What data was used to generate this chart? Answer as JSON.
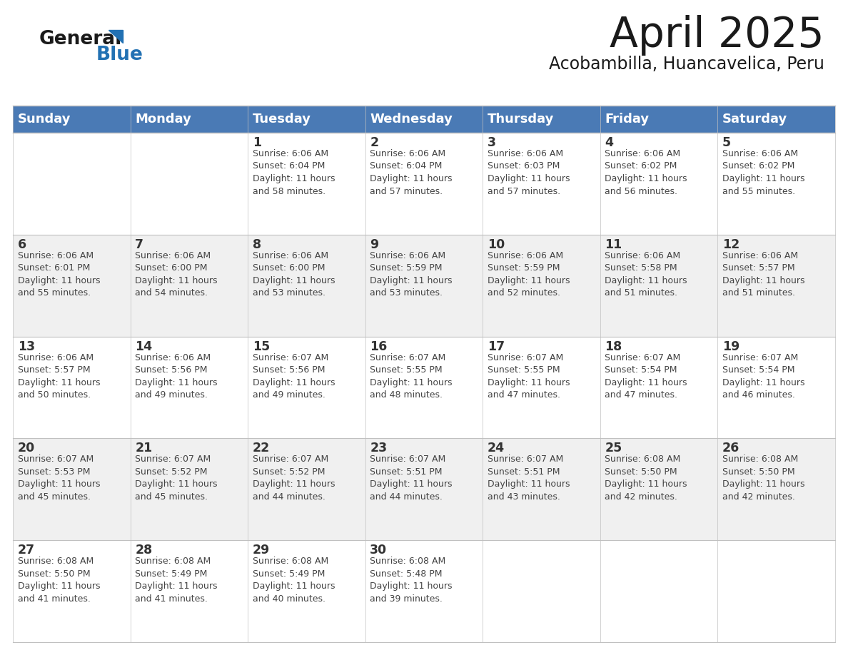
{
  "title": "April 2025",
  "subtitle": "Acobambilla, Huancavelica, Peru",
  "header_color": "#4a7ab5",
  "header_text_color": "#ffffff",
  "cell_bg_even": "#f0f0f0",
  "cell_bg_odd": "#ffffff",
  "grid_line_color": "#c0c0c0",
  "text_color": "#333333",
  "days_of_week": [
    "Sunday",
    "Monday",
    "Tuesday",
    "Wednesday",
    "Thursday",
    "Friday",
    "Saturday"
  ],
  "calendar_data": [
    [
      {
        "day": "",
        "info": ""
      },
      {
        "day": "",
        "info": ""
      },
      {
        "day": "1",
        "info": "Sunrise: 6:06 AM\nSunset: 6:04 PM\nDaylight: 11 hours\nand 58 minutes."
      },
      {
        "day": "2",
        "info": "Sunrise: 6:06 AM\nSunset: 6:04 PM\nDaylight: 11 hours\nand 57 minutes."
      },
      {
        "day": "3",
        "info": "Sunrise: 6:06 AM\nSunset: 6:03 PM\nDaylight: 11 hours\nand 57 minutes."
      },
      {
        "day": "4",
        "info": "Sunrise: 6:06 AM\nSunset: 6:02 PM\nDaylight: 11 hours\nand 56 minutes."
      },
      {
        "day": "5",
        "info": "Sunrise: 6:06 AM\nSunset: 6:02 PM\nDaylight: 11 hours\nand 55 minutes."
      }
    ],
    [
      {
        "day": "6",
        "info": "Sunrise: 6:06 AM\nSunset: 6:01 PM\nDaylight: 11 hours\nand 55 minutes."
      },
      {
        "day": "7",
        "info": "Sunrise: 6:06 AM\nSunset: 6:00 PM\nDaylight: 11 hours\nand 54 minutes."
      },
      {
        "day": "8",
        "info": "Sunrise: 6:06 AM\nSunset: 6:00 PM\nDaylight: 11 hours\nand 53 minutes."
      },
      {
        "day": "9",
        "info": "Sunrise: 6:06 AM\nSunset: 5:59 PM\nDaylight: 11 hours\nand 53 minutes."
      },
      {
        "day": "10",
        "info": "Sunrise: 6:06 AM\nSunset: 5:59 PM\nDaylight: 11 hours\nand 52 minutes."
      },
      {
        "day": "11",
        "info": "Sunrise: 6:06 AM\nSunset: 5:58 PM\nDaylight: 11 hours\nand 51 minutes."
      },
      {
        "day": "12",
        "info": "Sunrise: 6:06 AM\nSunset: 5:57 PM\nDaylight: 11 hours\nand 51 minutes."
      }
    ],
    [
      {
        "day": "13",
        "info": "Sunrise: 6:06 AM\nSunset: 5:57 PM\nDaylight: 11 hours\nand 50 minutes."
      },
      {
        "day": "14",
        "info": "Sunrise: 6:06 AM\nSunset: 5:56 PM\nDaylight: 11 hours\nand 49 minutes."
      },
      {
        "day": "15",
        "info": "Sunrise: 6:07 AM\nSunset: 5:56 PM\nDaylight: 11 hours\nand 49 minutes."
      },
      {
        "day": "16",
        "info": "Sunrise: 6:07 AM\nSunset: 5:55 PM\nDaylight: 11 hours\nand 48 minutes."
      },
      {
        "day": "17",
        "info": "Sunrise: 6:07 AM\nSunset: 5:55 PM\nDaylight: 11 hours\nand 47 minutes."
      },
      {
        "day": "18",
        "info": "Sunrise: 6:07 AM\nSunset: 5:54 PM\nDaylight: 11 hours\nand 47 minutes."
      },
      {
        "day": "19",
        "info": "Sunrise: 6:07 AM\nSunset: 5:54 PM\nDaylight: 11 hours\nand 46 minutes."
      }
    ],
    [
      {
        "day": "20",
        "info": "Sunrise: 6:07 AM\nSunset: 5:53 PM\nDaylight: 11 hours\nand 45 minutes."
      },
      {
        "day": "21",
        "info": "Sunrise: 6:07 AM\nSunset: 5:52 PM\nDaylight: 11 hours\nand 45 minutes."
      },
      {
        "day": "22",
        "info": "Sunrise: 6:07 AM\nSunset: 5:52 PM\nDaylight: 11 hours\nand 44 minutes."
      },
      {
        "day": "23",
        "info": "Sunrise: 6:07 AM\nSunset: 5:51 PM\nDaylight: 11 hours\nand 44 minutes."
      },
      {
        "day": "24",
        "info": "Sunrise: 6:07 AM\nSunset: 5:51 PM\nDaylight: 11 hours\nand 43 minutes."
      },
      {
        "day": "25",
        "info": "Sunrise: 6:08 AM\nSunset: 5:50 PM\nDaylight: 11 hours\nand 42 minutes."
      },
      {
        "day": "26",
        "info": "Sunrise: 6:08 AM\nSunset: 5:50 PM\nDaylight: 11 hours\nand 42 minutes."
      }
    ],
    [
      {
        "day": "27",
        "info": "Sunrise: 6:08 AM\nSunset: 5:50 PM\nDaylight: 11 hours\nand 41 minutes."
      },
      {
        "day": "28",
        "info": "Sunrise: 6:08 AM\nSunset: 5:49 PM\nDaylight: 11 hours\nand 41 minutes."
      },
      {
        "day": "29",
        "info": "Sunrise: 6:08 AM\nSunset: 5:49 PM\nDaylight: 11 hours\nand 40 minutes."
      },
      {
        "day": "30",
        "info": "Sunrise: 6:08 AM\nSunset: 5:48 PM\nDaylight: 11 hours\nand 39 minutes."
      },
      {
        "day": "",
        "info": ""
      },
      {
        "day": "",
        "info": ""
      },
      {
        "day": "",
        "info": ""
      }
    ]
  ],
  "logo_text1": "General",
  "logo_text2": "Blue",
  "logo_color1": "#1a1a1a",
  "logo_color2": "#2271b3",
  "triangle_color": "#2271b3"
}
